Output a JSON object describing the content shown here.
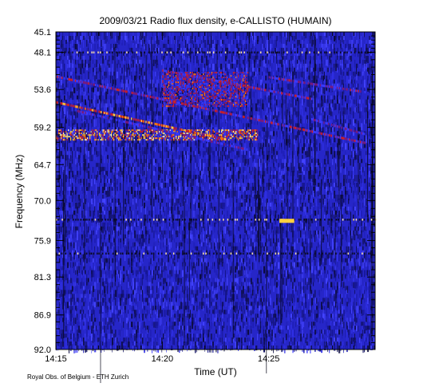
{
  "chart_data": {
    "type": "heatmap",
    "title": "2009/03/21  Radio flux density, e-CALLISTO (HUMAIN)",
    "xlabel": "Time (UT)",
    "ylabel": "Frequency (MHz)",
    "xlim": [
      "14:15",
      "14:30"
    ],
    "ylim": [
      45.1,
      92.0
    ],
    "y_inverted": true,
    "x_ticks": [
      "14:15",
      "14:20",
      "14:25"
    ],
    "y_ticks": [
      "45.1",
      "48.1",
      "53.6",
      "59.2",
      "64.7",
      "70.0",
      "75.9",
      "81.3",
      "86.9",
      "92.0"
    ],
    "colormap": [
      "#0a0a18",
      "#1a1a8c",
      "#2a2ad8",
      "#3a3aff",
      "#7a1a7a",
      "#d02020",
      "#ff7a00",
      "#ffd040",
      "#fff8c0"
    ],
    "background_level": "#2626c8",
    "features": [
      {
        "kind": "drifting-burst",
        "start": [
          "14:15",
          51.7
        ],
        "end": [
          "14:29.5",
          61.5
        ],
        "intensity": 0.55
      },
      {
        "kind": "drifting-burst",
        "start": [
          "14:15",
          55.5
        ],
        "end": [
          "14:23",
          61.0
        ],
        "intensity": 0.75
      },
      {
        "kind": "drifting-burst",
        "start": [
          "14:16",
          56.8
        ],
        "end": [
          "14:24",
          62.5
        ],
        "intensity": 0.45
      },
      {
        "kind": "drifting-burst",
        "start": [
          "14:20",
          50.8
        ],
        "end": [
          "14:27",
          55.0
        ],
        "intensity": 0.55
      },
      {
        "kind": "drifting-burst",
        "start": [
          "14:25",
          51.8
        ],
        "end": [
          "14:29.5",
          54.0
        ],
        "intensity": 0.5
      },
      {
        "kind": "drifting-burst",
        "start": [
          "14:27",
          58.0
        ],
        "end": [
          "14:29.5",
          60.2
        ],
        "intensity": 0.45
      },
      {
        "kind": "emission-band",
        "t_start": "14:20",
        "t_end": "14:24",
        "f_start": 51.0,
        "f_end": 56.0,
        "intensity": 0.6
      },
      {
        "kind": "emission-band",
        "t_start": "14:15",
        "t_end": "14:24.5",
        "f_start": 59.5,
        "f_end": 61.0,
        "intensity": 0.85
      },
      {
        "kind": "hot-spot",
        "t_start": "14:25.5",
        "t_end": "14:26.2",
        "f_start": 72.7,
        "f_end": 73.3,
        "intensity": 0.9
      },
      {
        "kind": "rfi-line",
        "f": 72.8,
        "intensity": 0.3
      },
      {
        "kind": "rfi-line",
        "f": 77.8,
        "intensity": 0.3
      },
      {
        "kind": "rfi-line",
        "f": 48.1,
        "intensity": 0.2
      }
    ]
  },
  "credit": "Royal Obs. of Belgium - ETH Zurich"
}
